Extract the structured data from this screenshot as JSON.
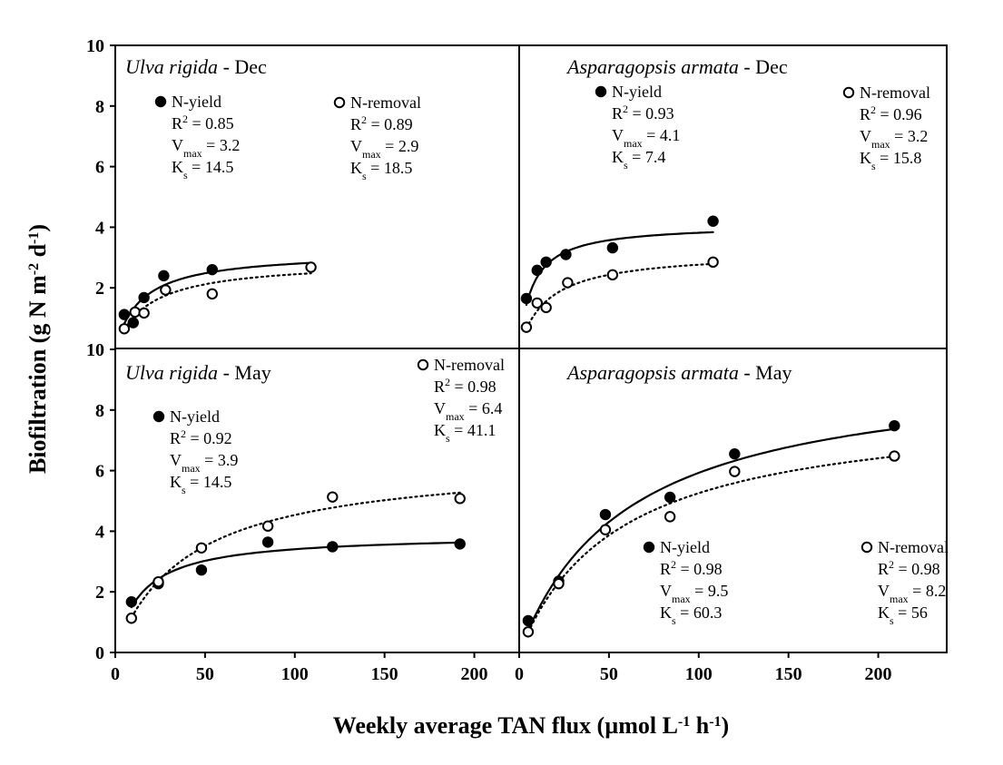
{
  "chart_data": {
    "type": "scatter",
    "x_label": {
      "main": "Weekly average TAN flux (µmol L",
      "sup1": "-1",
      "mid": " h",
      "sup2": "-1",
      "end": ")"
    },
    "y_label": {
      "main": "Biofiltration (g N m",
      "sup1": "-2",
      "mid": " d",
      "sup2": "-1",
      "end": ")"
    },
    "ylim": [
      0,
      10
    ],
    "yticks": [
      0,
      2,
      4,
      6,
      8,
      10
    ],
    "left_xlim": [
      0,
      240
    ],
    "left_xticks": [
      0,
      50,
      100,
      150,
      200
    ],
    "right_xlim": [
      0,
      240
    ],
    "right_xticks": [
      0,
      50,
      100,
      150,
      200
    ],
    "panels": [
      {
        "id": "ulva-dec",
        "species": "Ulva rigida",
        "month": " - Dec",
        "col": 0,
        "row": 0,
        "series": [
          {
            "name": "N-yield",
            "marker": "filled",
            "line": "solid",
            "vmax": 3.2,
            "ks": 14.5,
            "r2": 0.85,
            "x": [
              5,
              10,
              16,
              27,
              54
            ],
            "y": [
              1.12,
              0.85,
              1.68,
              2.4,
              2.6
            ],
            "legend_lines": [
              "R",
              "= 0.85",
              "V",
              "= 3.2",
              "K",
              "= 14.5"
            ]
          },
          {
            "name": "N-removal",
            "marker": "open",
            "line": "dotted",
            "vmax": 2.9,
            "ks": 18.5,
            "r2": 0.89,
            "x": [
              5,
              11,
              16,
              28,
              54,
              109
            ],
            "y": [
              0.65,
              1.2,
              1.17,
              1.93,
              1.8,
              2.68
            ],
            "legend_lines": [
              "R",
              "= 0.89",
              "V",
              "= 2.9",
              "K",
              "= 18.5"
            ]
          }
        ],
        "curve_x": [
          5,
          109
        ]
      },
      {
        "id": "asparagopsis-dec",
        "species": "Asparagopsis armata",
        "month": " - Dec",
        "col": 1,
        "row": 0,
        "series": [
          {
            "name": "N-yield",
            "marker": "filled",
            "line": "solid",
            "vmax": 4.1,
            "ks": 7.4,
            "r2": 0.93,
            "x": [
              4,
              10,
              15,
              26,
              52,
              108
            ],
            "y": [
              1.65,
              2.58,
              2.85,
              3.1,
              3.32,
              4.2
            ],
            "legend_lines": [
              "R",
              "= 0.93",
              "V",
              "= 4.1",
              "K",
              "= 7.4"
            ]
          },
          {
            "name": "N-removal",
            "marker": "open",
            "line": "dotted",
            "vmax": 3.2,
            "ks": 15.8,
            "r2": 0.96,
            "x": [
              4,
              10,
              15,
              27,
              52,
              108
            ],
            "y": [
              0.7,
              1.5,
              1.35,
              2.17,
              2.43,
              2.85
            ],
            "legend_lines": [
              "R",
              "= 0.96",
              "V",
              "= 3.2",
              "K",
              "= 15.8"
            ]
          }
        ],
        "curve_x": [
          4,
          108
        ]
      },
      {
        "id": "ulva-may",
        "species": "Ulva rigida",
        "month": " - May",
        "col": 0,
        "row": 1,
        "series": [
          {
            "name": "N-yield",
            "marker": "filled",
            "line": "solid",
            "vmax": 3.9,
            "ks": 14.5,
            "r2": 0.92,
            "x": [
              9,
              24,
              48,
              85,
              121,
              192
            ],
            "y": [
              1.67,
              2.27,
              2.72,
              3.64,
              3.49,
              3.58
            ],
            "legend_lines": [
              "R",
              "= 0.92",
              "V",
              "= 3.9",
              "K",
              "= 14.5"
            ]
          },
          {
            "name": "N-removal",
            "marker": "open",
            "line": "dotted",
            "vmax": 6.4,
            "ks": 41.1,
            "r2": 0.98,
            "x": [
              9,
              24,
              48,
              85,
              121,
              192
            ],
            "y": [
              1.13,
              2.33,
              3.45,
              4.17,
              5.13,
              5.08
            ],
            "legend_lines": [
              "R",
              "= 0.98",
              "V",
              "= 6.4",
              "K",
              "= 41.1"
            ]
          }
        ],
        "curve_x": [
          9,
          192
        ]
      },
      {
        "id": "asparagopsis-may",
        "species": "Asparagopsis armata",
        "month": " - May",
        "col": 1,
        "row": 1,
        "series": [
          {
            "name": "N-yield",
            "marker": "filled",
            "line": "solid",
            "vmax": 9.5,
            "ks": 60.3,
            "r2": 0.98,
            "x": [
              5,
              22,
              48,
              84,
              120,
              209
            ],
            "y": [
              1.05,
              2.35,
              4.55,
              5.12,
              6.55,
              7.48
            ],
            "legend_lines": [
              "R",
              "= 0.98",
              "V",
              "= 9.5",
              "K",
              "= 60.3"
            ]
          },
          {
            "name": "N-removal",
            "marker": "open",
            "line": "dotted",
            "vmax": 8.2,
            "ks": 56,
            "r2": 0.98,
            "x": [
              5,
              22,
              48,
              84,
              120,
              209
            ],
            "y": [
              0.68,
              2.27,
              4.05,
              4.48,
              5.97,
              6.48
            ],
            "legend_lines": [
              "R",
              "= 0.98",
              "V",
              "= 8.2",
              "K",
              "= 56"
            ]
          }
        ],
        "curve_x": [
          5,
          209
        ]
      }
    ]
  },
  "colors": {
    "ink": "#000000",
    "background": "#ffffff"
  }
}
